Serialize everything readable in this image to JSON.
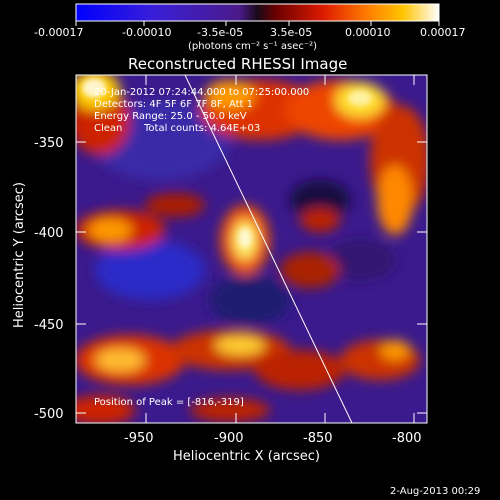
{
  "colorbar": {
    "tick_labels": [
      "-0.00017",
      "-0.00010",
      "-3.5e-05",
      "3.5e-05",
      "0.00010",
      "0.00017"
    ],
    "units_label": "(photons cm⁻² s⁻¹ asec⁻²)",
    "range": [
      -0.00017,
      0.00017
    ]
  },
  "plot": {
    "title": "Reconstructed RHESSI Image",
    "xlabel": "Heliocentric X (arcsec)",
    "ylabel": "Heliocentric Y (arcsec)",
    "x_ticks": [
      "-950",
      "-900",
      "-850",
      "-800"
    ],
    "y_ticks": [
      "-350",
      "-400",
      "-450",
      "-500"
    ],
    "xlim": [
      -990,
      -790
    ],
    "ylim": [
      -505,
      -320
    ]
  },
  "info_lines": {
    "time": "20-Jan-2012 07:24:44.000 to 07:25:00.000",
    "detectors": "Detectors: 4F 5F 6F 7F 8F, Att 1",
    "energy": "Energy Range: 25.0 - 50.0 keV",
    "clean": "Clean",
    "counts": "Total counts: 4.64E+03"
  },
  "peak_text": "Position of Peak = [-816,-319]",
  "footer": {
    "timestamp": "2-Aug-2013 00:29"
  }
}
